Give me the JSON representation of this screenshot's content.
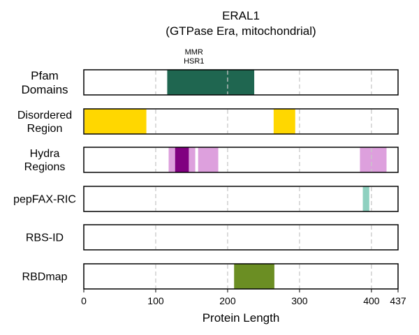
{
  "chart_data": {
    "type": "bar",
    "title": "ERAL1",
    "subtitle": "(GTPase Era, mitochondrial)",
    "xlabel": "Protein Length",
    "xlim": [
      0,
      437
    ],
    "xticks": [
      0,
      100,
      200,
      300,
      400,
      437
    ],
    "grid": true,
    "tracks": [
      {
        "label": [
          "Pfam",
          "Domains"
        ],
        "segments": [
          {
            "start": 116,
            "end": 237,
            "color": "#1f6650",
            "annotation": [
              "MMR",
              "HSR1"
            ]
          }
        ]
      },
      {
        "label": [
          "Disordered",
          "Region"
        ],
        "segments": [
          {
            "start": 1,
            "end": 87,
            "color": "#ffd700"
          },
          {
            "start": 264,
            "end": 294,
            "color": "#ffd700"
          }
        ]
      },
      {
        "label": [
          "Hydra",
          "Regions"
        ],
        "segments": [
          {
            "start": 118,
            "end": 155,
            "color": "#dda0dd"
          },
          {
            "start": 159,
            "end": 187,
            "color": "#dda0dd"
          },
          {
            "start": 127,
            "end": 146,
            "color": "#800080"
          },
          {
            "start": 384,
            "end": 421,
            "color": "#dda0dd"
          }
        ]
      },
      {
        "label": [
          "pepFAX-RIC"
        ],
        "segments": [
          {
            "start": 388,
            "end": 397,
            "color": "#8fd1c0"
          }
        ]
      },
      {
        "label": [
          "RBS-ID"
        ],
        "segments": []
      },
      {
        "label": [
          "RBDmap"
        ],
        "segments": [
          {
            "start": 209,
            "end": 265,
            "color": "#6b8e23"
          }
        ]
      }
    ]
  }
}
